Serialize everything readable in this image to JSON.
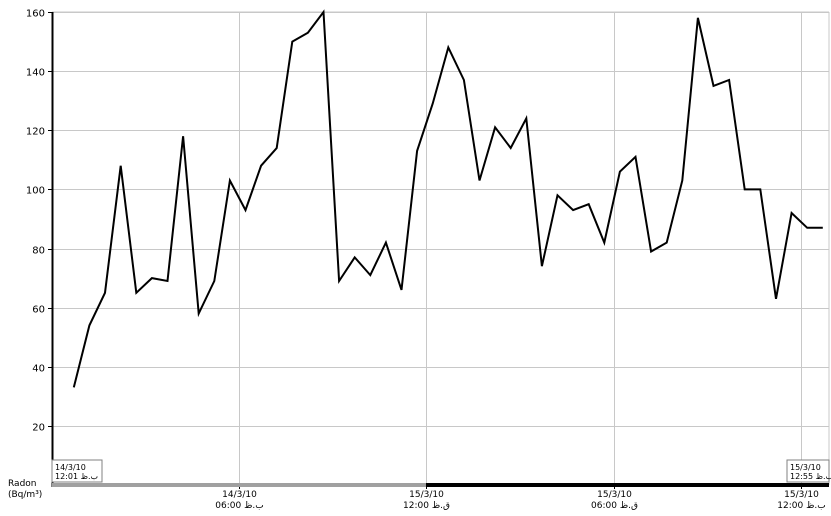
{
  "chart_data": {
    "type": "line",
    "ylabel_line1": "Radon",
    "ylabel_line2": "(Bq/m³)",
    "ylim": [
      0,
      160
    ],
    "yticks": [
      20,
      40,
      60,
      80,
      100,
      120,
      140,
      160
    ],
    "grid": true,
    "legend": "none",
    "line_color": "#000000",
    "x_range_hours": [
      0,
      24.9
    ],
    "start_label": {
      "line1": "14/3/10",
      "line2": "12:01 ب.ظ"
    },
    "end_label": {
      "line1": "15/3/10",
      "line2": "12:55 ب.ظ"
    },
    "xticks": [
      {
        "hour": 6,
        "line1": "14/3/10",
        "line2": "06:00 ب.ظ"
      },
      {
        "hour": 12,
        "line1": "15/3/10",
        "line2": "12:00 ق.ظ"
      },
      {
        "hour": 18,
        "line1": "15/3/10",
        "line2": "06:00 ق.ظ"
      },
      {
        "hour": 24,
        "line1": "15/3/10",
        "line2": "12:00 ب.ظ"
      }
    ],
    "series": [
      {
        "x": [
          0.7,
          1.2,
          1.7,
          2.2,
          2.7,
          3.2,
          3.7,
          4.2,
          4.7,
          5.2,
          5.7,
          6.2,
          6.7,
          7.2,
          7.7,
          8.2,
          8.7,
          9.2,
          9.7,
          10.2,
          10.7,
          11.2,
          11.7,
          12.2,
          12.7,
          13.2,
          13.7,
          14.2,
          14.7,
          15.2,
          15.7,
          16.2,
          16.7,
          17.2,
          17.7,
          18.2,
          18.7,
          19.2,
          19.7,
          20.2,
          20.7,
          21.2,
          21.7,
          22.2,
          22.7,
          23.2,
          23.7,
          24.2,
          24.7
        ],
        "y": [
          33,
          54,
          65,
          108,
          65,
          70,
          69,
          118,
          58,
          69,
          103,
          93,
          108,
          114,
          150,
          153,
          160,
          69,
          77,
          71,
          82,
          66,
          113,
          129,
          148,
          137,
          103,
          121,
          114,
          124,
          74,
          98,
          93,
          95,
          82,
          106,
          111,
          79,
          82,
          103,
          158,
          135,
          137,
          100,
          100,
          63,
          92,
          87,
          87
        ]
      }
    ]
  }
}
